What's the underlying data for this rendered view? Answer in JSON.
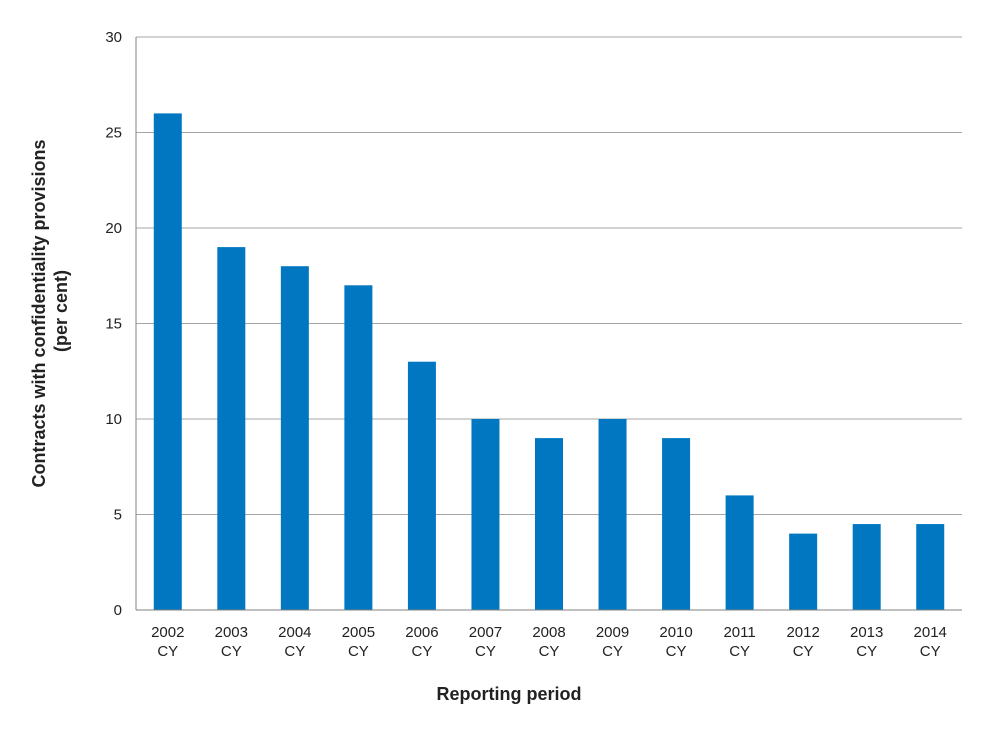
{
  "chart_data": {
    "type": "bar",
    "title": "",
    "xlabel": "Reporting period",
    "ylabel_lines": [
      "Contracts with confidentiality provisions",
      "(per cent)"
    ],
    "ylim": [
      0,
      30
    ],
    "yticks": [
      0,
      5,
      10,
      15,
      20,
      25,
      30
    ],
    "grid": true,
    "legend": "none",
    "bar_color": "#0077C0",
    "gridline_color": "#A6A6A6",
    "axis_color": "#808080",
    "categories": [
      [
        "2002",
        "CY"
      ],
      [
        "2003",
        "CY"
      ],
      [
        "2004",
        "CY"
      ],
      [
        "2005",
        "CY"
      ],
      [
        "2006",
        "CY"
      ],
      [
        "2007",
        "CY"
      ],
      [
        "2008",
        "CY"
      ],
      [
        "2009",
        "CY"
      ],
      [
        "2010",
        "CY"
      ],
      [
        "2011",
        "CY"
      ],
      [
        "2012",
        "CY"
      ],
      [
        "2013",
        "CY"
      ],
      [
        "2014",
        "CY"
      ]
    ],
    "values": [
      26,
      19,
      18,
      17,
      13,
      10,
      9,
      10,
      9,
      6,
      4,
      4.5,
      4.5
    ]
  }
}
